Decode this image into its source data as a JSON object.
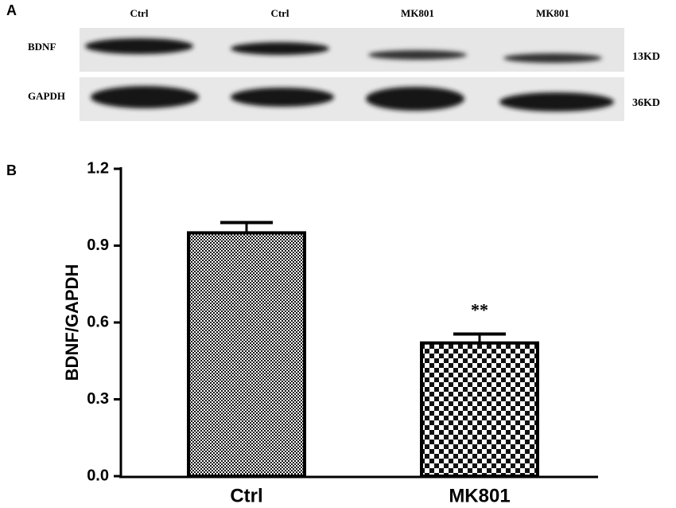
{
  "blot": {
    "panel_label": "A",
    "lane_labels": [
      "Ctrl",
      "Ctrl",
      "MK801",
      "MK801"
    ],
    "rows": [
      {
        "label": "BDNF",
        "size": "13KD"
      },
      {
        "label": "GAPDH",
        "size": "36KD"
      }
    ]
  },
  "chart_data": {
    "type": "bar",
    "panel_label": "B",
    "ylabel": "BDNF/GAPDH",
    "categories": [
      "Ctrl",
      "MK801"
    ],
    "values": [
      0.95,
      0.52
    ],
    "errors": [
      0.04,
      0.035
    ],
    "significance_labels": [
      null,
      "**"
    ],
    "ylim": [
      0,
      1.2
    ],
    "yticks": [
      {
        "value": 0,
        "label": "0.0"
      },
      0.3,
      0.6,
      0.9,
      1.2
    ]
  }
}
